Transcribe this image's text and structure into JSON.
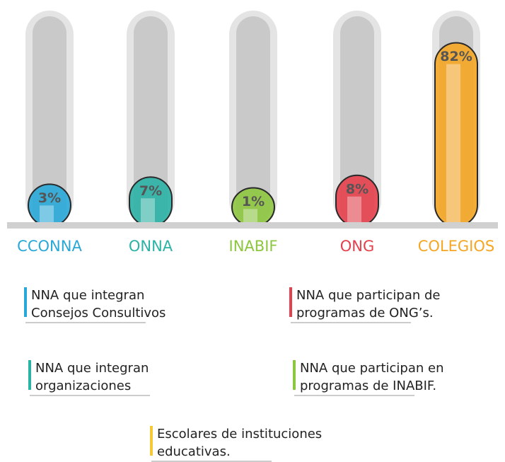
{
  "chart_data": {
    "type": "bar",
    "categories": [
      "CCONNA",
      "ONNA",
      "INABIF",
      "ONG",
      "COLEGIOS"
    ],
    "values": [
      3,
      7,
      1,
      8,
      82
    ],
    "value_labels": [
      "3%",
      "7%",
      "1%",
      "8%",
      "82%"
    ],
    "colors": [
      "#29a8d8",
      "#2bb3a6",
      "#8dc63f",
      "#e5404c",
      "#f5a623"
    ],
    "ylim": [
      0,
      100
    ],
    "notes": [
      {
        "lines": [
          "NNA que integran",
          "Consejos Consultivos"
        ],
        "color": "#29a8d8"
      },
      {
        "lines": [
          "NNA que participan de",
          "programas de ONG’s."
        ],
        "color": "#e5404c"
      },
      {
        "lines": [
          "NNA que integran",
          "organizaciones"
        ],
        "color": "#2bb3a6"
      },
      {
        "lines": [
          "NNA que participan en",
          "programas de INABIF."
        ],
        "color": "#8dc63f"
      },
      {
        "lines": [
          "Escolares de instituciones",
          "educativas."
        ],
        "color": "#f5c83a"
      }
    ]
  }
}
